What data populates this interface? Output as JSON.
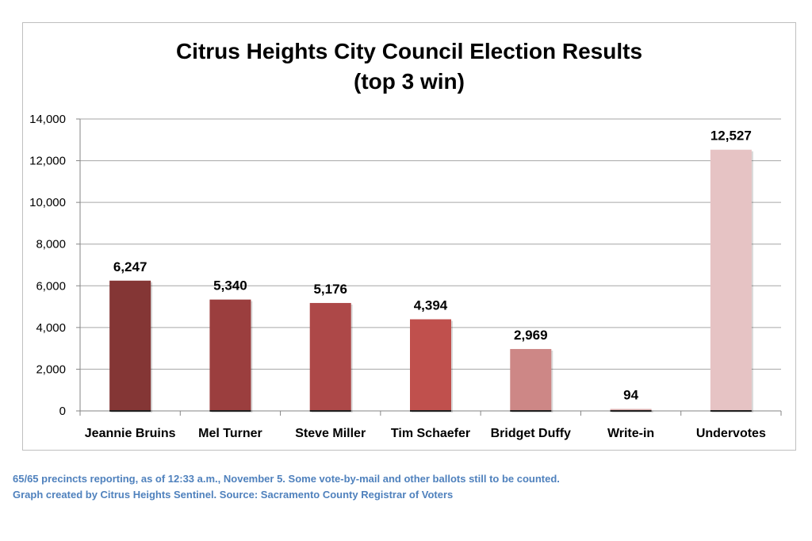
{
  "chart_data": {
    "type": "bar",
    "title": "Citrus Heights City Council Election Results",
    "subtitle": "(top 3 win)",
    "categories": [
      "Jeannie Bruins",
      "Mel Turner",
      "Steve Miller",
      "Tim Schaefer",
      "Bridget Duffy",
      "Write-in",
      "Undervotes"
    ],
    "values": [
      6247,
      5340,
      5176,
      4394,
      2969,
      94,
      12527
    ],
    "data_labels": [
      "6,247",
      "5,340",
      "5,176",
      "4,394",
      "2,969",
      "94",
      "12,527"
    ],
    "colors": [
      "#843635",
      "#9b3e3e",
      "#ad4848",
      "#c0504d",
      "#cd8786",
      "#dcaeae",
      "#e6c3c4"
    ],
    "ylim": [
      0,
      14000
    ],
    "yticks": [
      "0",
      "2,000",
      "4,000",
      "6,000",
      "8,000",
      "10,000",
      "12,000",
      "14,000"
    ],
    "grid": true,
    "xlabel": "",
    "ylabel": ""
  },
  "notes": [
    "65/65 precincts reporting, as of 12:33 a.m., November 5. Some vote-by-mail and other ballots still to be counted.",
    "Graph created by Citrus Heights Sentinel. Source: Sacramento County Registrar of Voters"
  ]
}
